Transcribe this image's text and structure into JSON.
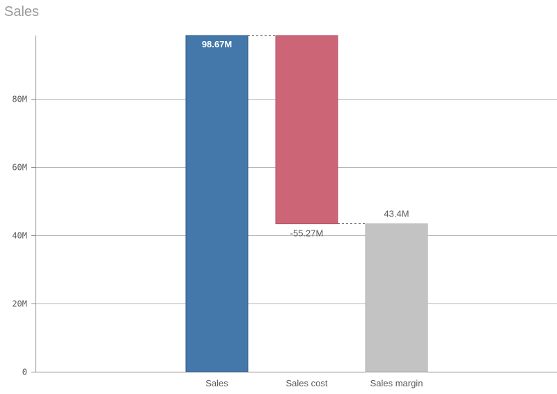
{
  "chart_data": {
    "type": "bar",
    "subtype": "waterfall",
    "title": "Sales",
    "categories": [
      "Sales",
      "Sales cost",
      "Sales margin"
    ],
    "values": [
      98.67,
      -55.27,
      43.4
    ],
    "data_labels": [
      "98.67M",
      "-55.27M",
      "43.4M"
    ],
    "value_unit": "M",
    "ylim": [
      0,
      98.67
    ],
    "yticks": [
      0,
      20,
      40,
      60,
      80
    ],
    "ytick_labels": [
      "0",
      "20M",
      "40M",
      "60M",
      "80M"
    ],
    "grid": true,
    "legend": false,
    "colors": {
      "Sales": "#4477aa",
      "Sales cost": "#cc6677",
      "Sales margin": "#c3c3c3",
      "grid": "#b4b4b4",
      "connector": "#333333"
    }
  }
}
